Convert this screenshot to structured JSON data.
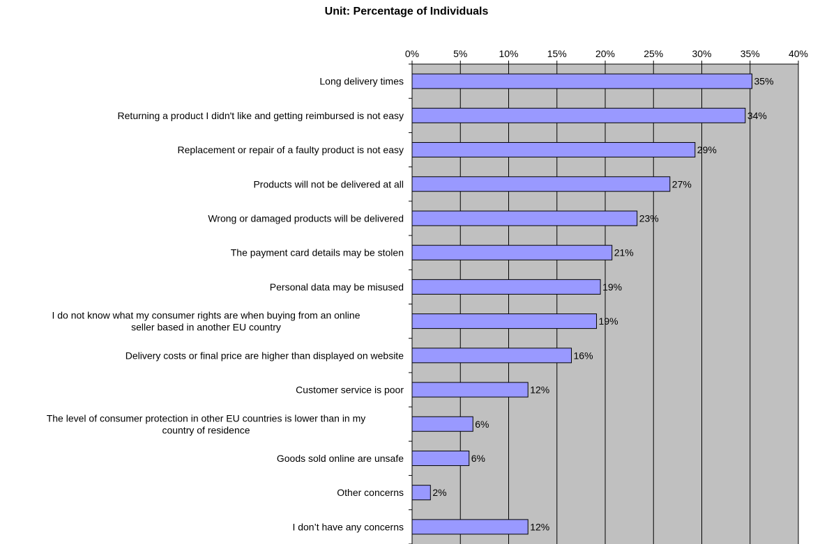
{
  "chart_data": {
    "type": "bar",
    "orientation": "horizontal",
    "title": "Unit: Percentage of Individuals",
    "xlabel": "",
    "ylabel": "",
    "xlim": [
      0,
      40
    ],
    "x_ticks": [
      "0%",
      "5%",
      "10%",
      "15%",
      "20%",
      "25%",
      "30%",
      "35%",
      "40%"
    ],
    "x_axis_position": "top",
    "grid": true,
    "legend": "none",
    "categories": [
      "Long delivery times",
      "Returning a product I didn't like and getting reimbursed is not easy",
      "Replacement or repair of a faulty product is not easy",
      "Products will not be delivered at all",
      "Wrong or damaged products will be delivered",
      "The payment card details may be stolen",
      "Personal data may be misused",
      "I do not know what my consumer rights are when buying from an online seller based in another EU country",
      "Delivery costs or final price are higher than displayed on website",
      "Customer service is poor",
      "The level of consumer protection in other EU countries is lower than in my country of residence",
      "Goods sold online are unsafe",
      "Other concerns",
      "I don’t have any concerns"
    ],
    "category_lines": [
      [
        "Long delivery times"
      ],
      [
        "Returning a product I didn't like and getting reimbursed is not easy"
      ],
      [
        "Replacement or repair of a faulty product is not easy"
      ],
      [
        "Products will not be delivered at all"
      ],
      [
        "Wrong or damaged products will be delivered"
      ],
      [
        "The payment card details may be stolen"
      ],
      [
        "Personal data may be misused"
      ],
      [
        "I do not know what my consumer rights are when buying from an online",
        "seller based in another EU country"
      ],
      [
        "Delivery costs or final price are higher than displayed on website"
      ],
      [
        "Customer service is poor"
      ],
      [
        "The level of consumer protection in other EU countries is lower than in my",
        "country of residence"
      ],
      [
        "Goods sold online are unsafe"
      ],
      [
        "Other concerns"
      ],
      [
        "I don’t have any concerns"
      ]
    ],
    "values": [
      35.2,
      34.5,
      29.3,
      26.7,
      23.3,
      20.7,
      19.5,
      19.1,
      16.5,
      12.0,
      6.3,
      5.9,
      1.9,
      12.0
    ],
    "data_labels": [
      "35%",
      "34%",
      "29%",
      "27%",
      "23%",
      "21%",
      "19%",
      "19%",
      "16%",
      "12%",
      "6%",
      "6%",
      "2%",
      "12%"
    ],
    "colors": {
      "plot_background": "#c0c0c0",
      "bar_fill": "#9999ff",
      "bar_stroke": "#000000",
      "grid": "#000000"
    }
  }
}
